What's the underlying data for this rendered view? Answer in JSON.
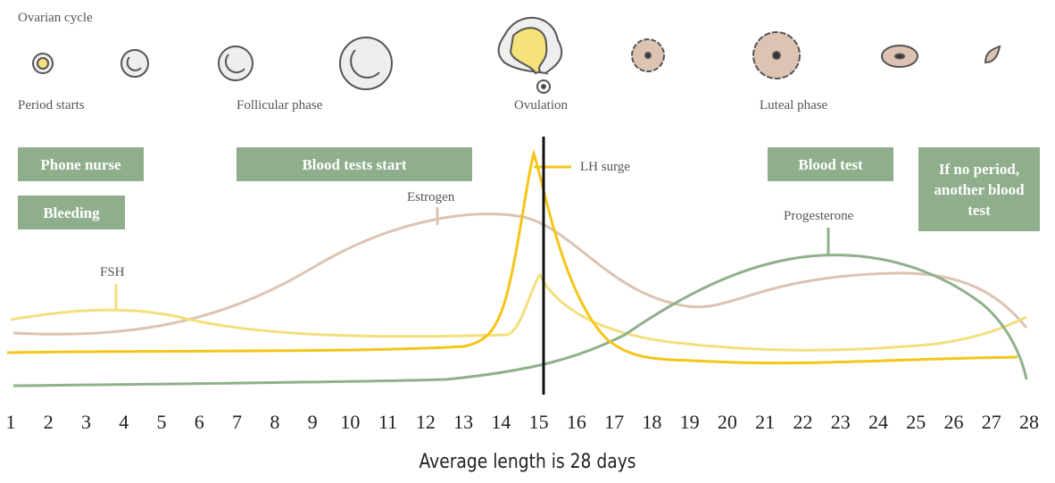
{
  "header": {
    "title": "Ovarian cycle"
  },
  "phases": [
    "Period starts",
    "Follicular phase",
    "Ovulation",
    "Luteal phase"
  ],
  "boxes": [
    "Phone nurse",
    "Bleeding",
    "Blood tests start",
    "Blood test",
    "If no period, another blood test"
  ],
  "hormones": [
    "FSH",
    "Estrogen",
    "LH surge",
    "Progesterone"
  ],
  "days": [
    "1",
    "2",
    "3",
    "4",
    "5",
    "6",
    "7",
    "8",
    "9",
    "10",
    "11",
    "12",
    "13",
    "14",
    "15",
    "16",
    "17",
    "18",
    "19",
    "20",
    "21",
    "22",
    "23",
    "24",
    "25",
    "26",
    "27",
    "28"
  ],
  "footer": "Average length is 28 days"
}
